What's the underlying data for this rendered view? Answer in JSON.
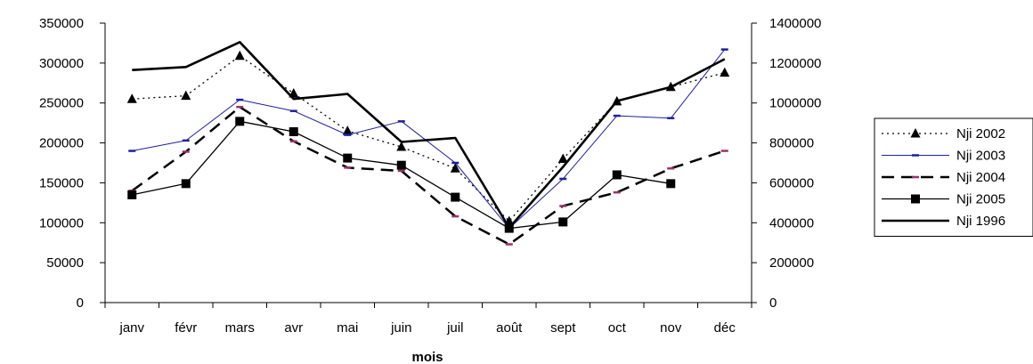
{
  "chart_data": {
    "type": "line",
    "title": "",
    "xlabel": "mois",
    "ylabel": "",
    "y2label": "",
    "categories": [
      "janv",
      "févr",
      "mars",
      "avr",
      "mai",
      "juin",
      "juil",
      "août",
      "sept",
      "oct",
      "nov",
      "déc"
    ],
    "ylim": [
      0,
      350000
    ],
    "y_ticks": [
      "0",
      "50000",
      "100000",
      "150000",
      "200000",
      "250000",
      "300000",
      "350000"
    ],
    "y2lim": [
      0,
      1400000
    ],
    "y2_ticks": [
      "0",
      "200000",
      "400000",
      "600000",
      "800000",
      "1000000",
      "1200000",
      "1400000"
    ],
    "grid": false,
    "legend_position": "right",
    "series": [
      {
        "name": "Nji 2002",
        "axis": "left",
        "style": "dotted",
        "marker": "triangle",
        "color": "#000000",
        "values": [
          255000,
          259000,
          309000,
          262000,
          215000,
          195000,
          168000,
          102000,
          180000,
          252000,
          270000,
          288000
        ]
      },
      {
        "name": "Nji 2003",
        "axis": "left",
        "style": "solid-thin",
        "marker": "dash",
        "color": "#1f1f9e",
        "values": [
          190000,
          203000,
          254000,
          240000,
          210000,
          227000,
          175000,
          93000,
          155000,
          234000,
          231000,
          317000
        ]
      },
      {
        "name": "Nji 2004",
        "axis": "left",
        "style": "dashed",
        "marker": "dash",
        "color": "#000000",
        "marker_color": "#993366",
        "values": [
          140000,
          189000,
          245000,
          202000,
          169000,
          165000,
          108000,
          73000,
          121000,
          138000,
          168000,
          190000
        ]
      },
      {
        "name": "Nji 2005",
        "axis": "left",
        "style": "solid",
        "marker": "square",
        "color": "#000000",
        "values": [
          135000,
          149000,
          227000,
          214000,
          181000,
          172000,
          132000,
          93000,
          101000,
          160000,
          149000,
          null
        ]
      },
      {
        "name": "Nji 1996",
        "axis": "right",
        "style": "solid-thick",
        "marker": "none",
        "color": "#000000",
        "values": [
          1165000,
          1180000,
          1305000,
          1020000,
          1045000,
          805000,
          825000,
          375000,
          680000,
          1010000,
          1080000,
          1220000
        ]
      }
    ]
  }
}
